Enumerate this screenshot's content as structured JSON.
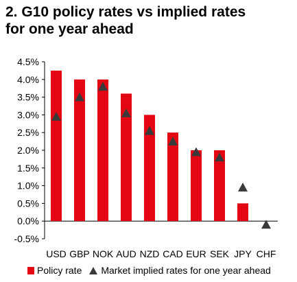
{
  "title_line1": "2. G10 policy rates vs implied rates",
  "title_line2": "for one year ahead",
  "colors": {
    "bar": "#e30613",
    "marker": "#3a3a3a",
    "axis": "#000000"
  },
  "legend": {
    "policy_label": "Policy rate",
    "market_label": "Market implied rates for one year ahead"
  },
  "chart_data": {
    "type": "bar",
    "title": "2. G10 policy rates vs implied rates for one year ahead",
    "categories": [
      "USD",
      "GBP",
      "NOK",
      "AUD",
      "NZD",
      "CAD",
      "EUR",
      "SEK",
      "JPY",
      "CHF"
    ],
    "series": [
      {
        "name": "Policy rate",
        "kind": "bar",
        "values": [
          4.25,
          4.0,
          4.0,
          3.6,
          3.0,
          2.5,
          2.0,
          2.0,
          0.5,
          null
        ]
      },
      {
        "name": "Market implied rates for one year ahead",
        "kind": "marker-triangle",
        "values": [
          2.95,
          3.5,
          3.8,
          3.05,
          2.55,
          2.25,
          1.95,
          1.8,
          0.95,
          -0.1
        ]
      }
    ],
    "ylim": [
      -0.5,
      4.5
    ],
    "yticks": [
      "-0.5%",
      "0.0%",
      "0.5%",
      "1.0%",
      "1.5%",
      "2.0%",
      "2.5%",
      "3.0%",
      "3.5%",
      "4.0%",
      "4.5%"
    ],
    "ytick_values": [
      -0.5,
      0.0,
      0.5,
      1.0,
      1.5,
      2.0,
      2.5,
      3.0,
      3.5,
      4.0,
      4.5
    ],
    "grid": false,
    "legend_position": "bottom"
  }
}
